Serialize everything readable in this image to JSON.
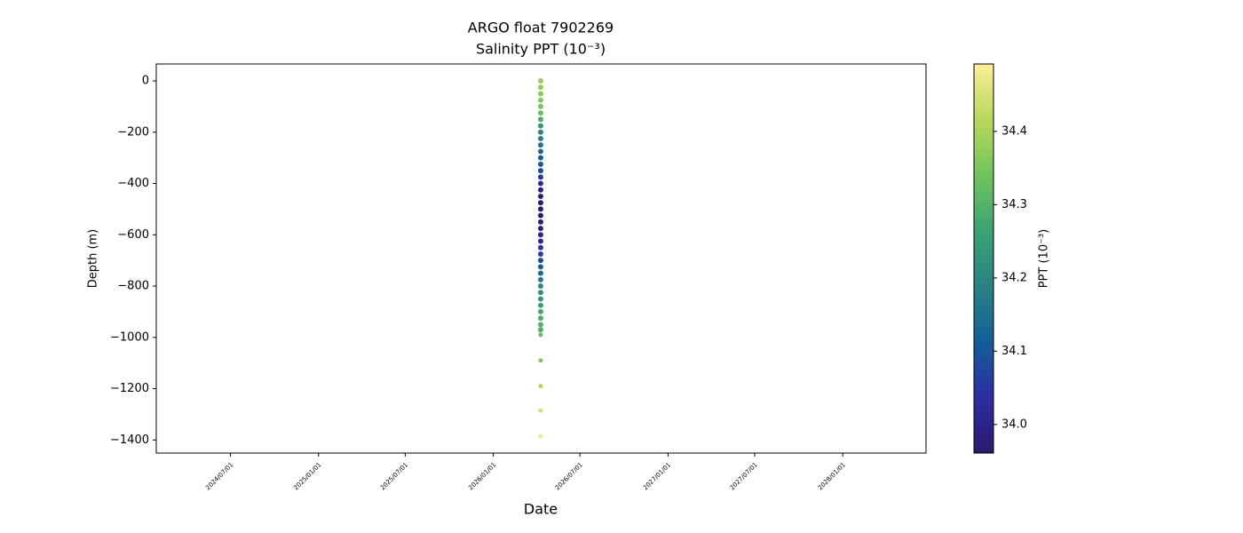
{
  "chart_data": {
    "type": "scatter",
    "title": "ARGO float 7902269",
    "subtitle": "Salinity PPT (10⁻³)",
    "x_label": "Date",
    "y_label": "Depth (m)",
    "colorbar_label": "PPT (10⁻³)",
    "xlim": [
      "2024/01/28",
      "2028/06/23"
    ],
    "xticks": [
      "2024/07/01",
      "2025/01/01",
      "2025/07/01",
      "2026/01/01",
      "2026/07/01",
      "2027/01/01",
      "2027/07/01",
      "2028/01/01"
    ],
    "ylim": [
      -1451,
      66
    ],
    "yticks": [
      {
        "value": 0,
        "label": "0"
      },
      {
        "value": -200,
        "label": "−200"
      },
      {
        "value": -400,
        "label": "−400"
      },
      {
        "value": -600,
        "label": "−600"
      },
      {
        "value": -800,
        "label": "−800"
      },
      {
        "value": -1000,
        "label": "−1000"
      },
      {
        "value": -1200,
        "label": "−1200"
      },
      {
        "value": -1400,
        "label": "−1400"
      }
    ],
    "clim": [
      33.961,
      34.492
    ],
    "cticks": [
      {
        "value": 34,
        "label": "34.0"
      },
      34.1,
      34.2,
      34.3,
      34.4
    ],
    "colormap": [
      "#2a186c",
      "#2d2ea3",
      "#135e98",
      "#2a8285",
      "#3ba374",
      "#6ec45c",
      "#b8d85a",
      "#fdee99"
    ],
    "x": [
      "2026/04/10",
      "2026/04/10",
      "2026/04/10",
      "2026/04/10",
      "2026/04/10",
      "2026/04/10",
      "2026/04/10",
      "2026/04/10",
      "2026/04/10",
      "2026/04/10",
      "2026/04/10",
      "2026/04/10",
      "2026/04/10",
      "2026/04/10",
      "2026/04/10",
      "2026/04/10",
      "2026/04/10",
      "2026/04/10",
      "2026/04/10",
      "2026/04/10",
      "2026/04/10",
      "2026/04/10",
      "2026/04/10",
      "2026/04/10",
      "2026/04/10",
      "2026/04/10",
      "2026/04/10",
      "2026/04/10",
      "2026/04/10",
      "2026/04/10",
      "2026/04/10",
      "2026/04/10",
      "2026/04/10",
      "2026/04/10",
      "2026/04/10",
      "2026/04/10",
      "2026/04/10",
      "2026/04/10",
      "2026/04/10",
      "2026/04/10",
      "2026/04/10",
      "2026/04/10",
      "2026/04/10",
      "2026/04/10",
      "2026/04/10"
    ],
    "y": [
      0,
      -25,
      -50,
      -75,
      -100,
      -125,
      -150,
      -175,
      -200,
      -225,
      -250,
      -275,
      -300,
      -325,
      -350,
      -375,
      -400,
      -425,
      -450,
      -475,
      -500,
      -525,
      -550,
      -575,
      -600,
      -625,
      -650,
      -675,
      -700,
      -725,
      -750,
      -775,
      -800,
      -825,
      -850,
      -875,
      -900,
      -925,
      -950,
      -970,
      -990,
      -1090,
      -1190,
      -1285,
      -1385
    ],
    "values": [
      34.38,
      34.38,
      34.37,
      34.36,
      34.35,
      34.33,
      34.29,
      34.24,
      34.2,
      34.18,
      34.16,
      34.14,
      34.12,
      34.1,
      34.08,
      34.05,
      34.02,
      33.99,
      33.98,
      33.97,
      33.97,
      33.97,
      33.98,
      33.99,
      34.0,
      34.02,
      34.04,
      34.06,
      34.08,
      34.11,
      34.14,
      34.17,
      34.2,
      34.22,
      34.24,
      34.26,
      34.28,
      34.29,
      34.3,
      34.3,
      34.32,
      34.36,
      34.41,
      34.45,
      34.48
    ]
  }
}
